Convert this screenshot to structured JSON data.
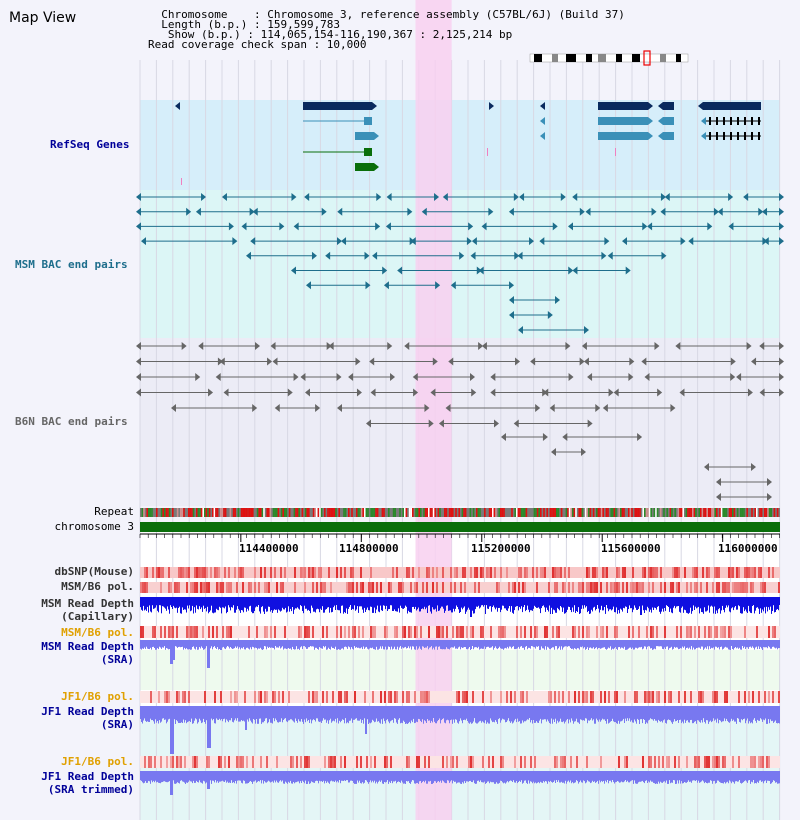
{
  "header": {
    "title": "Map View",
    "info_lines": [
      "  Chromosome    : Chromosome 3, reference assembly (C57BL/6J) (Build 37)",
      "  Length (b.p.) : 159,599,783",
      "   Show (b.p.) : 114,065,154-116,190,367 : 2,125,214 bp",
      "Read coverage check span : 10,000"
    ]
  },
  "tracks": {
    "refseq": "RefSeq Genes",
    "msm_bac": "MSM BAC end pairs",
    "b6n_bac": "B6N BAC end pairs",
    "repeat": "Repeat",
    "chromosome": "chromosome 3",
    "dbsnp": "dbSNP(Mouse)",
    "msm_b6_pol_1": "MSM/B6 pol.",
    "msm_read_depth_cap_1": "MSM Read Depth",
    "msm_read_depth_cap_2": "(Capillary)",
    "msm_b6_pol_2": "MSM/B6 pol.",
    "msm_read_depth_sra_1": "MSM Read Depth",
    "msm_read_depth_sra_2": "(SRA)",
    "jf1_b6_pol_1": "JF1/B6 pol.",
    "jf1_read_depth_sra_1": "JF1 Read Depth",
    "jf1_read_depth_sra_2": "(SRA)",
    "jf1_b6_pol_2": "JF1/B6 pol.",
    "jf1_read_depth_trim_1": "JF1 Read Depth",
    "jf1_read_depth_trim_2": "(SRA trimmed)"
  },
  "axis": {
    "start": 114065154,
    "end": 116190367,
    "ticks": [
      114400000,
      114800000,
      115200000,
      115600000,
      116000000
    ],
    "tick_labels": [
      "114400000",
      "114800000",
      "115200000",
      "115600000",
      "116000000"
    ]
  },
  "highlight": {
    "start": 114980000,
    "end": 115100000
  },
  "colors": {
    "refseq_bg": "#d6eefa",
    "msm_bg": "#dcf6f6",
    "b6n_bg": "#ececf6",
    "highlight": "#f8d0f0",
    "gene_navy": "#0a2a5e",
    "gene_teal": "#3a90b8",
    "gene_green": "#0a6e0a",
    "msm_pair": "#1e6e8c",
    "b6n_pair": "#666666",
    "chrom_green": "#0a6e0a",
    "depth_blue": "#1010e0",
    "depth_light": "#7878f0",
    "label_orange": "#e0a000",
    "label_navy": "#000099",
    "label_teal": "#1e6e8c"
  }
}
